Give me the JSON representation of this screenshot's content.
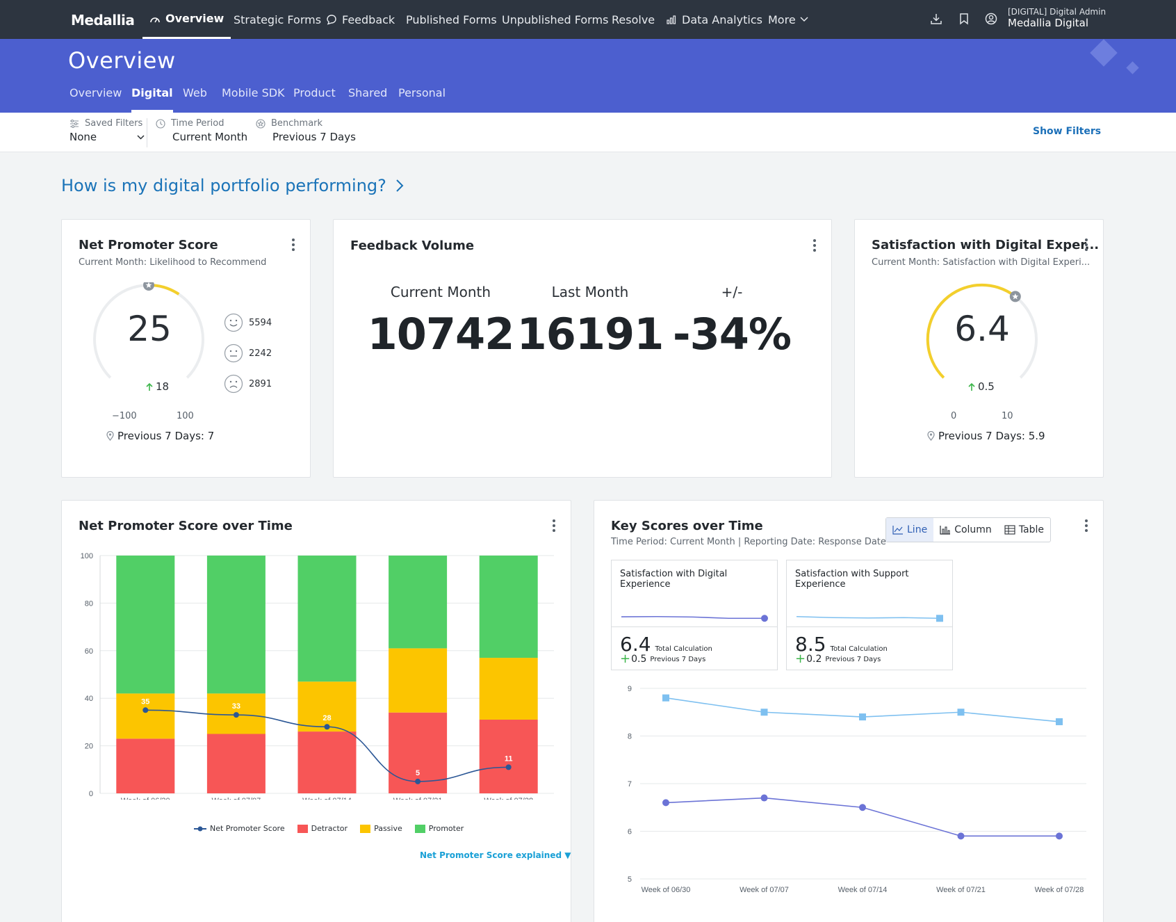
{
  "app": {
    "brand": "Medallia"
  },
  "nav": {
    "items": [
      "Overview",
      "Strategic Forms",
      "Feedback",
      "Published Forms",
      "Unpublished Forms",
      "Resolve",
      "Data Analytics",
      "More"
    ],
    "user_role": "[DIGITAL] Digital Admin",
    "user_name": "Medallia Digital"
  },
  "banner": {
    "title": "Overview",
    "tabs": [
      "Overview",
      "Digital",
      "Web",
      "Mobile SDK",
      "Product",
      "Shared",
      "Personal"
    ],
    "active_tab": "Digital"
  },
  "filters": {
    "saved_label": "Saved Filters",
    "saved_value": "None",
    "time_label": "Time Period",
    "time_value": "Current Month",
    "bench_label": "Benchmark",
    "bench_value": "Previous 7 Days",
    "show_filters": "Show Filters"
  },
  "question": "How is my digital portfolio performing?",
  "nps_card": {
    "title": "Net Promoter Score",
    "subtitle": "Current Month: Likelihood to Recommend",
    "score": "25",
    "delta": "18",
    "min_label": "−100",
    "max_label": "100",
    "benchmark": "Previous 7 Days: 7",
    "gauge_fraction": 0.625,
    "promoters": "5594",
    "passives": "2242",
    "detractors": "2891"
  },
  "volume_card": {
    "title": "Feedback Volume",
    "col1": "Current Month",
    "val1": "10742",
    "col2": "Last Month",
    "val2": "16191",
    "col3": "+/-",
    "val3": "-34%"
  },
  "sat_card": {
    "title": "Satisfaction with Digital Exper...",
    "subtitle": "Current Month: Satisfaction with Digital Experi...",
    "score": "6.4",
    "delta": "0.5",
    "min_label": "0",
    "max_label": "10",
    "benchmark": "Previous 7 Days: 5.9",
    "gauge_fraction": 0.64
  },
  "nps_time": {
    "title": "Net Promoter Score over Time",
    "explained": "Net Promoter Score explained ▼"
  },
  "key_scores": {
    "title": "Key Scores over Time",
    "subtitle": "Time Period: Current Month | Reporting Date: Response Date",
    "toggle": [
      "Line",
      "Column",
      "Table"
    ],
    "kpi1": {
      "title": "Satisfaction with Digital Experience",
      "value": "6.4",
      "calc": "Total Calculation",
      "delta": "0.5",
      "bench": "Previous 7 Days"
    },
    "kpi2": {
      "title": "Satisfaction with Support Experience",
      "value": "8.5",
      "calc": "Total Calculation",
      "delta": "0.2",
      "bench": "Previous 7 Days"
    }
  },
  "colors": {
    "detractor": "#f75656",
    "passive": "#fcc500",
    "promoter": "#51cf66",
    "nps_line": "#2b5796",
    "digital": "#6b73d6",
    "support": "#7ec0f0",
    "banner": "#4c5fcf"
  },
  "chart_data": [
    {
      "type": "bar",
      "title": "Net Promoter Score over Time",
      "categories": [
        "Week of 06/30",
        "Week of 07/07",
        "Week of 07/14",
        "Week of 07/21",
        "Week of 07/28"
      ],
      "stacked": true,
      "ylim": [
        0,
        100
      ],
      "yticks": [
        0,
        20,
        40,
        60,
        80,
        100
      ],
      "series": [
        {
          "name": "Detractor",
          "values": [
            23,
            25,
            26,
            34,
            31
          ]
        },
        {
          "name": "Passive",
          "values": [
            19,
            17,
            21,
            27,
            26
          ]
        },
        {
          "name": "Promoter",
          "values": [
            58,
            58,
            53,
            39,
            43
          ]
        }
      ],
      "line": {
        "name": "Net Promoter Score",
        "values": [
          35,
          33,
          28,
          5,
          11
        ]
      },
      "legend": "bottom"
    },
    {
      "type": "line",
      "title": "Key Scores over Time",
      "categories": [
        "Week of 06/30",
        "Week of 07/07",
        "Week of 07/14",
        "Week of 07/21",
        "Week of 07/28"
      ],
      "ylim": [
        5,
        9
      ],
      "yticks": [
        5,
        6,
        7,
        8,
        9
      ],
      "series": [
        {
          "name": "Satisfaction with Support Experience",
          "values": [
            8.8,
            8.5,
            8.4,
            8.5,
            8.3
          ]
        },
        {
          "name": "Satisfaction with Digital Experience",
          "values": [
            6.6,
            6.7,
            6.5,
            5.9,
            5.9
          ]
        }
      ]
    }
  ]
}
